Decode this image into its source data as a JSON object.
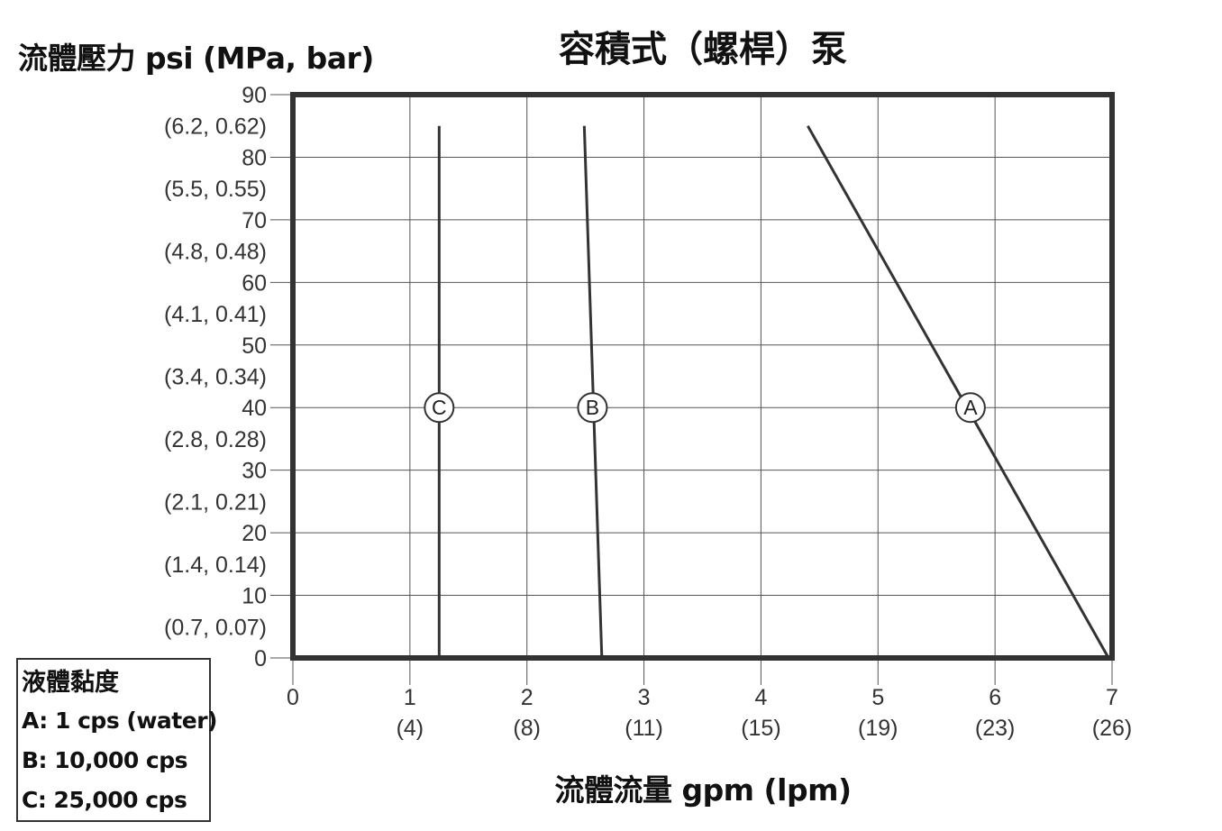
{
  "chart_data": {
    "type": "line",
    "title": "容積式（螺桿）泵",
    "xlabel": "流體流量 gpm (lpm)",
    "ylabel": "流體壓力 psi (MPa, bar)",
    "xlim": [
      0,
      7
    ],
    "ylim": [
      0,
      90
    ],
    "grid": true,
    "x_ticks": [
      {
        "value": 0,
        "label": "0",
        "sub": ""
      },
      {
        "value": 1,
        "label": "1",
        "sub": "(4)"
      },
      {
        "value": 2,
        "label": "2",
        "sub": "(8)"
      },
      {
        "value": 3,
        "label": "3",
        "sub": "(11)"
      },
      {
        "value": 4,
        "label": "4",
        "sub": "(15)"
      },
      {
        "value": 5,
        "label": "5",
        "sub": "(19)"
      },
      {
        "value": 6,
        "label": "6",
        "sub": "(23)"
      },
      {
        "value": 7,
        "label": "7",
        "sub": "(26)"
      }
    ],
    "y_ticks": [
      {
        "value": 90,
        "label": "90"
      },
      {
        "value": 80,
        "label": "80"
      },
      {
        "value": 70,
        "label": "70"
      },
      {
        "value": 60,
        "label": "60"
      },
      {
        "value": 50,
        "label": "50"
      },
      {
        "value": 40,
        "label": "40"
      },
      {
        "value": 30,
        "label": "30"
      },
      {
        "value": 20,
        "label": "20"
      },
      {
        "value": 10,
        "label": "10"
      },
      {
        "value": 0,
        "label": "0"
      }
    ],
    "y_sub_labels": [
      {
        "value": 85,
        "label": "(6.2, 0.62)"
      },
      {
        "value": 75,
        "label": "(5.5, 0.55)"
      },
      {
        "value": 65,
        "label": "(4.8, 0.48)"
      },
      {
        "value": 55,
        "label": "(4.1, 0.41)"
      },
      {
        "value": 45,
        "label": "(3.4, 0.34)"
      },
      {
        "value": 35,
        "label": "(2.8, 0.28)"
      },
      {
        "value": 25,
        "label": "(2.1, 0.21)"
      },
      {
        "value": 15,
        "label": "(1.4, 0.14)"
      },
      {
        "value": 5,
        "label": "(0.7, 0.07)"
      }
    ],
    "series": [
      {
        "name": "A",
        "description": "1 cps (water)",
        "x": [
          4.4,
          6.97
        ],
        "y": [
          85,
          0
        ],
        "marker": {
          "x": 5.79,
          "y": 40
        }
      },
      {
        "name": "B",
        "description": "10,000 cps",
        "x": [
          2.49,
          2.64
        ],
        "y": [
          85,
          0
        ],
        "marker": {
          "x": 2.56,
          "y": 40
        }
      },
      {
        "name": "C",
        "description": "25,000 cps",
        "x": [
          1.25,
          1.25
        ],
        "y": [
          85,
          0
        ],
        "marker": {
          "x": 1.25,
          "y": 40
        }
      }
    ],
    "legend": {
      "position": "bottom-left",
      "title": "液體黏度",
      "items": [
        "A: 1 cps (water)",
        "B: 10,000 cps",
        "C: 25,000 cps"
      ]
    }
  },
  "colors": {
    "frame": "#333333",
    "grid": "#555555",
    "line": "#333333",
    "text": "#111111",
    "tick_text": "#333333"
  }
}
